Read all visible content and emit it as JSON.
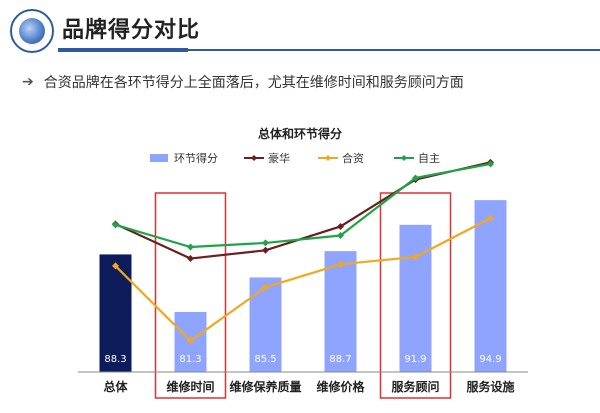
{
  "page": {
    "title": "品牌得分对比",
    "bullet": "合资品牌在各环节得分上全面落后，尤其在维修时间和服务顾问方面",
    "bullet_icon": "arrow-right-icon"
  },
  "chart_data": {
    "type": "bar",
    "title": "总体和环节得分",
    "categories": [
      "总体",
      "维修时间",
      "维修保养质量",
      "维修价格",
      "服务顾问",
      "服务设施"
    ],
    "values": [
      88.3,
      81.3,
      85.5,
      88.7,
      91.9,
      94.9
    ],
    "bar_color": "#8fa4ff",
    "first_bar_color": "#0e1b5a",
    "series": [
      {
        "name": "环节得分",
        "type": "bar",
        "color": "#8fa4ff",
        "values": [
          88.3,
          81.3,
          85.5,
          88.7,
          91.9,
          94.9
        ]
      },
      {
        "name": "豪华",
        "type": "line",
        "color": "#6b1f1f",
        "values": [
          92.0,
          87.8,
          88.8,
          91.7,
          97.4,
          99.5
        ]
      },
      {
        "name": "合资",
        "type": "line",
        "color": "#f2a81d",
        "values": [
          86.9,
          77.8,
          84.3,
          87.1,
          88.0,
          92.7
        ]
      },
      {
        "name": "自主",
        "type": "line",
        "color": "#1fa34a",
        "values": [
          91.9,
          89.2,
          89.7,
          90.6,
          97.6,
          99.3
        ]
      }
    ],
    "ylim": [
      74,
      101
    ],
    "grid": false,
    "legend": "top",
    "highlighted_categories": [
      "维修时间",
      "服务顾问"
    ],
    "highlight_color": "#e03030"
  }
}
